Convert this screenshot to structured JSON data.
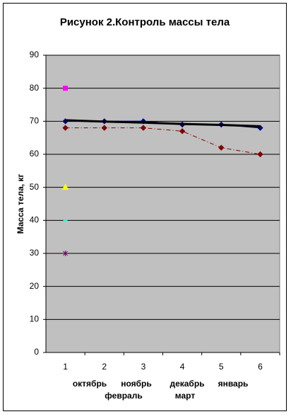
{
  "chart_data": {
    "type": "line",
    "title": "Рисунок 2.Контроль массы тела",
    "y_label": "Масса тела, кг",
    "categories": [
      "1",
      "2",
      "3",
      "4",
      "5",
      "6"
    ],
    "month_labels": [
      "октябрь",
      "ноябрь",
      "декабрь",
      "январь",
      "февраль",
      "март"
    ],
    "ylim": [
      0,
      90
    ],
    "yticks": [
      0,
      10,
      20,
      30,
      40,
      50,
      60,
      70,
      80,
      90
    ],
    "grid": true,
    "series": [
      {
        "color": "#000080",
        "marker": "diamond",
        "line": "solid",
        "width": 1.5,
        "values": [
          70,
          70,
          70,
          69,
          69,
          68
        ]
      },
      {
        "color": "#000000",
        "marker": "none",
        "line": "solid",
        "width": 3,
        "values": [
          70.3,
          69.9,
          69.6,
          69.2,
          68.9,
          68.5
        ]
      },
      {
        "color": "#800000",
        "marker": "diamond",
        "line": "dashdot",
        "width": 1,
        "values": [
          68,
          68,
          68,
          67,
          62,
          60
        ]
      },
      {
        "color": "#ff00ff",
        "marker": "square",
        "line": "none",
        "width": 1,
        "values": [
          80,
          null,
          null,
          null,
          null,
          null
        ]
      },
      {
        "color": "#ffff00",
        "marker": "triangle",
        "line": "none",
        "width": 1,
        "values": [
          50,
          null,
          null,
          null,
          null,
          null
        ]
      },
      {
        "color": "#00ffff",
        "marker": "dash",
        "line": "none",
        "width": 1,
        "values": [
          40,
          null,
          null,
          null,
          null,
          null
        ]
      },
      {
        "color": "#800080",
        "marker": "star",
        "line": "none",
        "width": 1,
        "values": [
          30,
          null,
          null,
          null,
          null,
          null
        ]
      }
    ]
  }
}
